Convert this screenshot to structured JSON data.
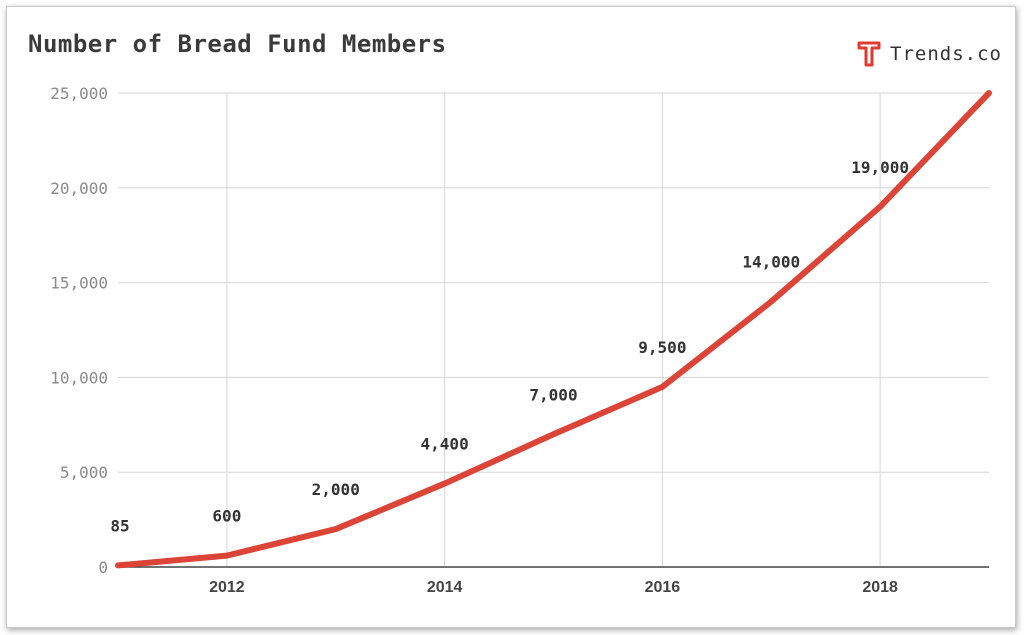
{
  "brand": {
    "name": "Trends.co",
    "logo_icon": "trends-t-logo-icon",
    "accent": "#e03a2f"
  },
  "chart_data": {
    "type": "line",
    "title": "Number of Bread Fund Members",
    "xlabel": "",
    "ylabel": "",
    "x": [
      2011,
      2012,
      2013,
      2014,
      2015,
      2016,
      2017,
      2018,
      2019
    ],
    "xlim": [
      2011,
      2019
    ],
    "ylim": [
      0,
      25000
    ],
    "x_ticks": [
      "2012",
      "2014",
      "2016",
      "2018"
    ],
    "y_ticks": [
      "0",
      "5,000",
      "10,000",
      "15,000",
      "20,000",
      "25,000"
    ],
    "series": [
      {
        "color": "#db4437",
        "values": [
          85,
          600,
          2000,
          4400,
          7000,
          9500,
          14000,
          19000,
          25000
        ],
        "data_labels": [
          "85",
          "600",
          "2,000",
          "4,400",
          "7,000",
          "9,500",
          "14,000",
          "19,000",
          ""
        ]
      }
    ],
    "grid": true,
    "legend": "none"
  }
}
